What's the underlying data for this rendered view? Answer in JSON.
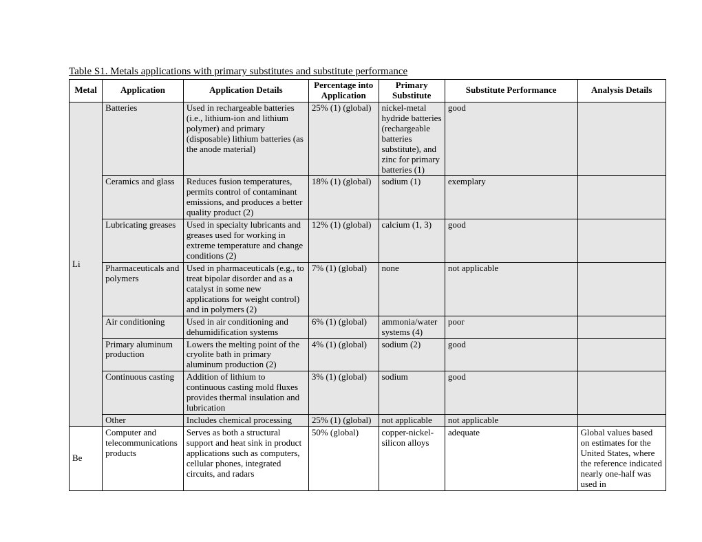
{
  "title": "Table S1.  Metals applications with primary substitutes and substitute performance",
  "headers": {
    "metal": "Metal",
    "application": "Application",
    "details": "Application Details",
    "percentage": "Percentage into Application",
    "substitute": "Primary Substitute",
    "performance": "Substitute Performance",
    "analysis": "Analysis Details"
  },
  "rows": [
    {
      "metal": "Li",
      "metal_rowspan": 8,
      "shade": true,
      "application": "Batteries",
      "details": "Used in rechargeable batteries (i.e., lithium-ion and lithium polymer) and primary (disposable) lithium batteries (as the anode material)",
      "percentage": "25% (1) (global)",
      "substitute": "nickel-metal hydride batteries (rechargeable batteries substitute), and zinc for primary batteries (1)",
      "performance": "good",
      "analysis": ""
    },
    {
      "shade": true,
      "application": "Ceramics and glass",
      "details": "Reduces fusion temperatures, permits control of contaminant emissions, and produces a better quality product (2)",
      "percentage": "18% (1) (global)",
      "substitute": "sodium (1)",
      "performance": "exemplary",
      "analysis": ""
    },
    {
      "shade": true,
      "application": "Lubricating greases",
      "details": "Used in specialty lubricants and greases used for working in extreme temperature and change conditions (2)",
      "percentage": "12% (1) (global)",
      "substitute": "calcium (1, 3)",
      "performance": "good",
      "analysis": ""
    },
    {
      "shade": true,
      "application": "Pharmaceuticals and polymers",
      "details": "Used in pharmaceuticals (e.g., to treat bipolar disorder and as a catalyst in some new applications for weight control) and in polymers (2)",
      "percentage": "7% (1) (global)",
      "substitute": "none",
      "performance": "not applicable",
      "analysis": ""
    },
    {
      "shade": true,
      "application": "Air conditioning",
      "details": "Used in air conditioning and dehumidification systems",
      "percentage": "6% (1) (global)",
      "substitute": "ammonia/water systems (4)",
      "performance": "poor",
      "analysis": ""
    },
    {
      "shade": true,
      "application": "Primary aluminum production",
      "details": "Lowers the melting point of the cryolite bath in primary aluminum production (2)",
      "percentage": "4% (1) (global)",
      "substitute": "sodium (2)",
      "performance": "good",
      "analysis": ""
    },
    {
      "shade": true,
      "application": "Continuous casting",
      "details": "Addition of lithium to continuous casting mold fluxes provides thermal insulation and lubrication",
      "percentage": "3% (1) (global)",
      "substitute": "sodium",
      "performance": "good",
      "analysis": ""
    },
    {
      "shade": true,
      "application": "Other",
      "details": "Includes chemical processing",
      "percentage": "25% (1) (global)",
      "substitute": "not applicable",
      "performance": "not applicable",
      "analysis": ""
    },
    {
      "metal": "Be",
      "metal_rowspan": 1,
      "shade": false,
      "application": "Computer and telecommunications products",
      "details": "Serves as both a structural support and heat sink in product applications such as computers, cellular phones, integrated circuits, and radars",
      "percentage": "50% (global)",
      "substitute": "copper-nickel-silicon alloys",
      "performance": "adequate",
      "analysis": "Global values based on estimates for the United States, where the reference indicated nearly one-half was used in"
    }
  ]
}
